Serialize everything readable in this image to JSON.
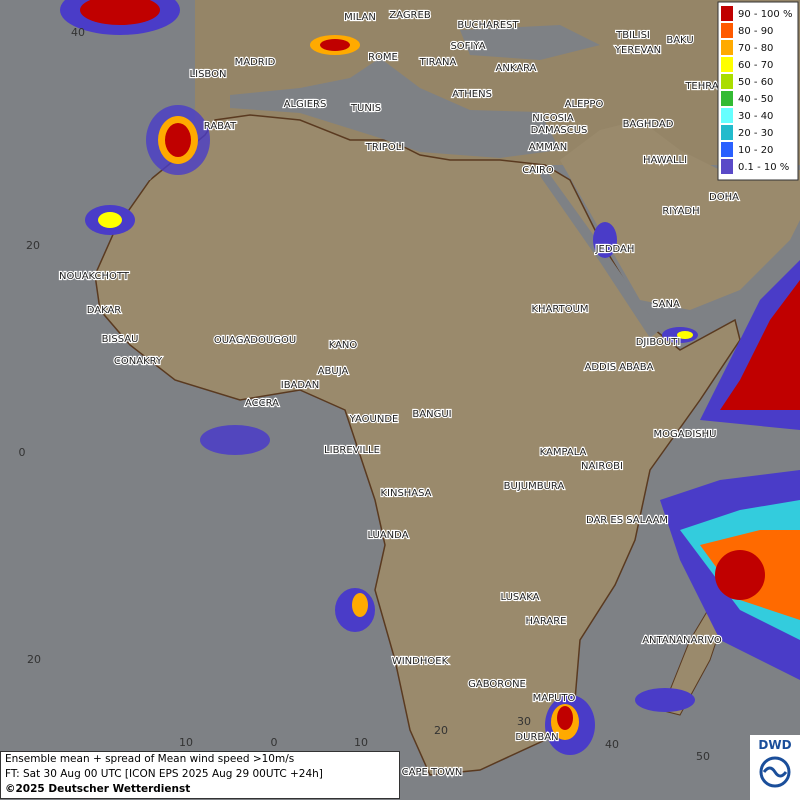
{
  "map": {
    "cities": [
      "MILAN",
      "ZAGREB",
      "BUCHAREST",
      "TBILISI",
      "BAKU",
      "SOFIYA",
      "YEREVAN",
      "MADRID",
      "ROME",
      "TIRANA",
      "ANKARA",
      "LISBON",
      "TEHRA",
      "ATHENS",
      "ALGIERS",
      "TUNIS",
      "ALEPPO",
      "RABAT",
      "NICOSIA",
      "BAGHDAD",
      "TRIPOLI",
      "DAMASCUS",
      "AMMAN",
      "HAWALLI",
      "CAIRO",
      "DOHA",
      "RIYADH",
      "JEDDAH",
      "NOUAKCHOTT",
      "SANA",
      "DAKAR",
      "KHARTOUM",
      "BISSAU",
      "OUAGADOUGOU",
      "DJIBOUTI",
      "KANO",
      "CONAKRY",
      "ABUJA",
      "ADDIS ABABA",
      "IBADAN",
      "ACCRA",
      "YAOUNDE",
      "BANGUI",
      "MOGADISHU",
      "LIBREVILLE",
      "KAMPALA",
      "NAIROBI",
      "KINSHASA",
      "BUJUMBURA",
      "DAR ES SALAAM",
      "LUANDA",
      "LUSAKA",
      "HARARE",
      "ANTANANARIVO",
      "WINDHOEK",
      "GABORONE",
      "MAPUTO",
      "DURBAN",
      "CAPE TOWN"
    ],
    "lat_labels": [
      "40",
      "20",
      "0",
      "20"
    ],
    "lon_labels": [
      "10",
      "0",
      "10",
      "20",
      "30",
      "40",
      "50"
    ]
  },
  "legend": [
    {
      "label": "90 - 100 %",
      "color": "#c00000"
    },
    {
      "label": "80 - 90",
      "color": "#ff5a00"
    },
    {
      "label": "70 - 80",
      "color": "#ffaa00"
    },
    {
      "label": "60 - 70",
      "color": "#ffff00"
    },
    {
      "label": "50 - 60",
      "color": "#aadd00"
    },
    {
      "label": "40 - 50",
      "color": "#33bb33"
    },
    {
      "label": "30 - 40",
      "color": "#66ffff"
    },
    {
      "label": "20 - 30",
      "color": "#22bbcc"
    },
    {
      "label": "10 - 20",
      "color": "#2a60ff"
    },
    {
      "label": "0.1 - 10 %",
      "color": "#5a4ac8"
    }
  ],
  "footer": {
    "line1": "Ensemble mean + spread of Mean wind speed >10m/s",
    "line2": "FT: Sat 30 Aug 00 UTC [ICON EPS 2025 Aug 29 00UTC +24h]",
    "line3": "©2025 Deutscher Wetterdienst"
  },
  "logo": "DWD"
}
